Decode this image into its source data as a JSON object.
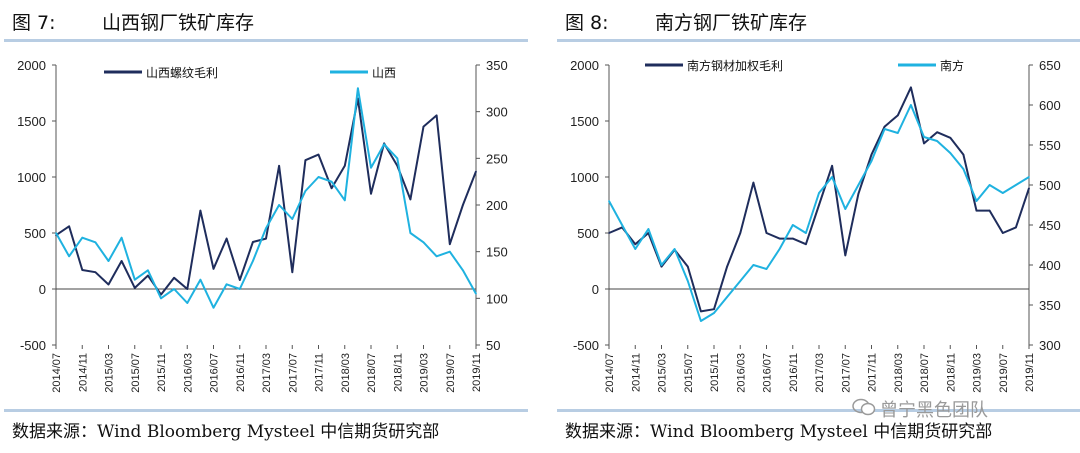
{
  "charts": [
    {
      "fig_label": "图 7:",
      "fig_title": "山西钢厂铁矿库存",
      "source": "数据来源：Wind Bloomberg Mysteel 中信期货研究部"
    },
    {
      "fig_label": "图 8:",
      "fig_title": "南方钢厂铁矿库存",
      "source": "数据来源：Wind Bloomberg Mysteel 中信期货研究部"
    }
  ],
  "watermark": "曾宁黑色团队",
  "colors": {
    "margin_series": "#1f2d5c",
    "inventory_series": "#1fb2e0",
    "rule": "#b8cde3"
  },
  "chart_data": [
    {
      "type": "line",
      "x_ticks": [
        "2014/07",
        "2014/11",
        "2015/03",
        "2015/07",
        "2015/11",
        "2016/03",
        "2016/07",
        "2016/11",
        "2017/03",
        "2017/07",
        "2017/11",
        "2018/03",
        "2018/07",
        "2018/11",
        "2019/03",
        "2019/07",
        "2019/11"
      ],
      "y_left": {
        "min": -500,
        "max": 2000,
        "ticks": [
          "2000",
          "1500",
          "1000",
          "500",
          "0",
          "-500"
        ]
      },
      "y_right": {
        "min": 50,
        "max": 350,
        "ticks": [
          "350",
          "300",
          "250",
          "200",
          "150",
          "100",
          "50"
        ]
      },
      "series": [
        {
          "name": "山西螺纹毛利",
          "axis": "left",
          "x": [
            0,
            0.5,
            1,
            1.5,
            2,
            2.5,
            3,
            3.5,
            4,
            4.5,
            5,
            5.5,
            6,
            6.5,
            7,
            7.5,
            8,
            8.5,
            9,
            9.5,
            10,
            10.5,
            11,
            11.5,
            12,
            12.5,
            13,
            13.5,
            14,
            14.5,
            15,
            15.5,
            16
          ],
          "values": [
            480,
            560,
            170,
            150,
            40,
            250,
            10,
            120,
            -50,
            100,
            0,
            700,
            180,
            450,
            80,
            420,
            450,
            1100,
            150,
            1150,
            1200,
            900,
            1100,
            1700,
            850,
            1300,
            1100,
            800,
            1450,
            1550,
            400,
            750,
            1050
          ]
        },
        {
          "name": "山西",
          "axis": "right",
          "x": [
            0,
            0.5,
            1,
            1.5,
            2,
            2.5,
            3,
            3.5,
            4,
            4.5,
            5,
            5.5,
            6,
            6.5,
            7,
            7.5,
            8,
            8.5,
            9,
            9.5,
            10,
            10.5,
            11,
            11.5,
            12,
            12.5,
            13,
            13.5,
            14,
            14.5,
            15,
            15.5,
            16
          ],
          "values": [
            170,
            145,
            165,
            160,
            140,
            165,
            120,
            130,
            100,
            110,
            95,
            120,
            90,
            115,
            110,
            140,
            175,
            200,
            185,
            215,
            230,
            225,
            205,
            325,
            240,
            265,
            250,
            170,
            160,
            145,
            150,
            130,
            105
          ]
        }
      ]
    },
    {
      "type": "line",
      "x_ticks": [
        "2014/07",
        "2014/11",
        "2015/03",
        "2015/07",
        "2015/11",
        "2016/03",
        "2016/07",
        "2016/11",
        "2017/03",
        "2017/07",
        "2017/11",
        "2018/03",
        "2018/07",
        "2018/11",
        "2019/03",
        "2019/07",
        "2019/11"
      ],
      "y_left": {
        "min": -500,
        "max": 2000,
        "ticks": [
          "2000",
          "1500",
          "1000",
          "500",
          "0",
          "-500"
        ]
      },
      "y_right": {
        "min": 300,
        "max": 650,
        "ticks": [
          "650",
          "600",
          "550",
          "500",
          "450",
          "400",
          "350",
          "300"
        ]
      },
      "series": [
        {
          "name": "南方钢材加权毛利",
          "axis": "left",
          "x": [
            0,
            0.5,
            1,
            1.5,
            2,
            2.5,
            3,
            3.5,
            4,
            4.5,
            5,
            5.5,
            6,
            6.5,
            7,
            7.5,
            8,
            8.5,
            9,
            9.5,
            10,
            10.5,
            11,
            11.5,
            12,
            12.5,
            13,
            13.5,
            14,
            14.5,
            15,
            15.5,
            16
          ],
          "values": [
            500,
            550,
            400,
            500,
            200,
            350,
            200,
            -200,
            -180,
            200,
            500,
            950,
            500,
            450,
            450,
            400,
            750,
            1100,
            300,
            850,
            1200,
            1450,
            1550,
            1800,
            1300,
            1400,
            1350,
            1200,
            700,
            700,
            500,
            550,
            900
          ]
        },
        {
          "name": "南方",
          "axis": "right",
          "x": [
            0,
            0.5,
            1,
            1.5,
            2,
            2.5,
            3,
            3.5,
            4,
            4.5,
            5,
            5.5,
            6,
            6.5,
            7,
            7.5,
            8,
            8.5,
            9,
            9.5,
            10,
            10.5,
            11,
            11.5,
            12,
            12.5,
            13,
            13.5,
            14,
            14.5,
            15,
            15.5,
            16
          ],
          "values": [
            480,
            450,
            420,
            445,
            400,
            420,
            380,
            330,
            340,
            360,
            380,
            400,
            395,
            420,
            450,
            440,
            490,
            510,
            470,
            500,
            530,
            570,
            565,
            600,
            560,
            555,
            540,
            520,
            480,
            500,
            490,
            500,
            510
          ]
        }
      ]
    }
  ]
}
